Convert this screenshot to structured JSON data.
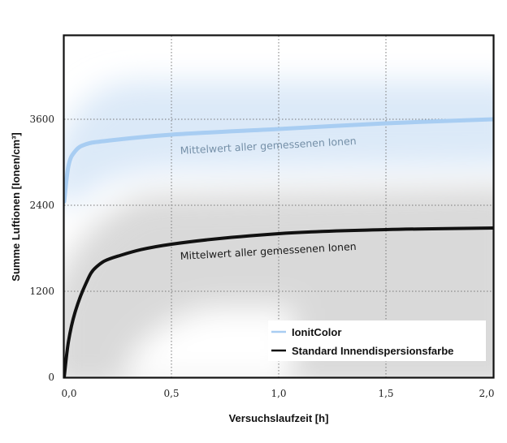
{
  "chart_data": {
    "type": "line",
    "title": "",
    "xlabel": "Versuchslaufzeit [h]",
    "ylabel": "Summe Luftionen [Ionen/cm³]",
    "xlim": [
      0,
      2.0
    ],
    "ylim": [
      0,
      4780
    ],
    "x_ticks": [
      "0,0",
      "0,5",
      "1,0",
      "1,5",
      "2,0"
    ],
    "x_tick_values": [
      0,
      0.5,
      1.0,
      1.5,
      2.0
    ],
    "y_ticks": [
      "0",
      "1200",
      "2400",
      "3600"
    ],
    "y_tick_values": [
      0,
      1200,
      2400,
      3600
    ],
    "grid": "dotted",
    "legend_position": "lower right",
    "series": [
      {
        "name": "IonitColor",
        "color": "#a8cdf2",
        "x": [
          0,
          0.02,
          0.05,
          0.1,
          0.2,
          0.5,
          1.0,
          1.5,
          2.0
        ],
        "values": [
          2450,
          2950,
          3150,
          3250,
          3300,
          3385,
          3464,
          3543,
          3600
        ],
        "annotation": "Mittelwert aller gemessenen Ionen"
      },
      {
        "name": "Standard Innendispersionsfarbe",
        "color": "#111111",
        "x": [
          0,
          0.02,
          0.05,
          0.1,
          0.15,
          0.25,
          0.5,
          1.0,
          1.5,
          2.0
        ],
        "values": [
          0,
          500,
          900,
          1300,
          1540,
          1690,
          1857,
          2004,
          2060,
          2083
        ],
        "annotation": "Mittelwert aller gemessenen Ionen"
      }
    ]
  },
  "legend": {
    "items": [
      {
        "label": "IonitColor",
        "color": "#a8cdf2"
      },
      {
        "label": "Standard Innendispersionsfarbe",
        "color": "#111111"
      }
    ]
  },
  "annotations": {
    "blue": "Mittelwert aller gemessenen Ionen",
    "black": "Mittelwert aller gemessenen Ionen"
  }
}
